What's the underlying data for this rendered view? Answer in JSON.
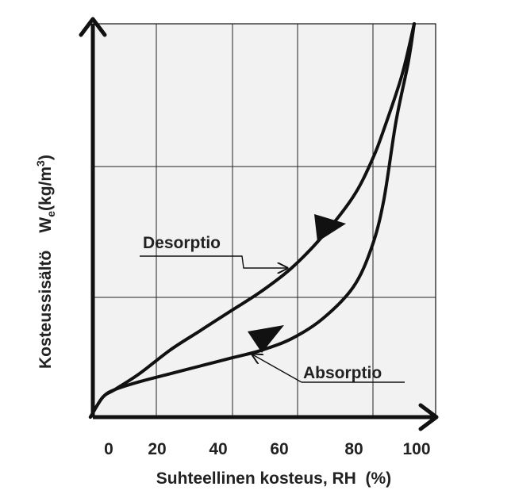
{
  "chart_data": {
    "type": "line",
    "title": "",
    "xlabel": "Suhteellinen kosteus, RH  (%)",
    "ylabel": {
      "text": "Kosteussisältö",
      "symbol": "W",
      "subscript": "e",
      "unit_open": "(kg/m",
      "unit_sup": "3",
      "unit_close": ")"
    },
    "x_ticks": [
      "0",
      "20",
      "40",
      "60",
      "80",
      "100"
    ],
    "x_tick_values": [
      0,
      20,
      40,
      60,
      80,
      100
    ],
    "xlim": [
      -6,
      106
    ],
    "ylim": [
      0,
      100
    ],
    "grid": true,
    "series": [
      {
        "name": "Desorptio",
        "direction": "decreasing RH",
        "x": [
          -6,
          -2,
          2,
          10,
          20,
          30,
          40,
          50,
          60,
          70,
          80,
          86,
          90,
          96,
          100
        ],
        "y": [
          0,
          5,
          7,
          11,
          17,
          22,
          27,
          32,
          38,
          46,
          56,
          65,
          73,
          87,
          100
        ]
      },
      {
        "name": "Absorptio",
        "direction": "increasing RH",
        "x": [
          -6,
          -2,
          2,
          10,
          20,
          30,
          40,
          50,
          60,
          70,
          80,
          86,
          90,
          94,
          98,
          100
        ],
        "y": [
          0,
          5,
          7,
          9,
          11,
          13,
          15,
          17,
          20,
          25,
          33,
          43,
          55,
          75,
          90,
          100
        ]
      }
    ],
    "annotations": [
      {
        "text": "Desorptio",
        "series": "Desorptio"
      },
      {
        "text": "Absorptio",
        "series": "Absorptio"
      }
    ]
  }
}
